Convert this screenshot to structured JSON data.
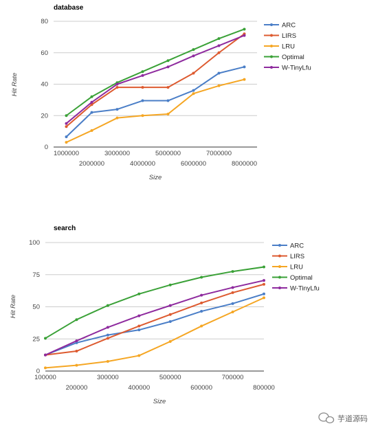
{
  "chart_data": [
    {
      "type": "line",
      "title": "database",
      "xlabel": "Size",
      "ylabel": "Hit Rate",
      "x": [
        1000000,
        2000000,
        3000000,
        4000000,
        5000000,
        6000000,
        7000000,
        8000000
      ],
      "xlim": [
        500000,
        8500000
      ],
      "ylim": [
        0,
        80
      ],
      "yticks": [
        0,
        20,
        40,
        60,
        80
      ],
      "xtick_labels": [
        "1000000",
        "2000000",
        "3000000",
        "4000000",
        "5000000",
        "6000000",
        "7000000",
        "8000000"
      ],
      "grid": true,
      "legend_position": "right",
      "series": [
        {
          "name": "ARC",
          "color": "#4a7ec7",
          "values": [
            6.5,
            22,
            24,
            29.5,
            29.5,
            36,
            47,
            51
          ]
        },
        {
          "name": "LIRS",
          "color": "#dd5a2f",
          "values": [
            13,
            27,
            38,
            38,
            38,
            47,
            60,
            72
          ]
        },
        {
          "name": "LRU",
          "color": "#f5a623",
          "values": [
            3,
            10.5,
            18.5,
            20,
            21,
            34,
            39,
            43
          ]
        },
        {
          "name": "Optimal",
          "color": "#3aa137",
          "values": [
            20,
            32,
            41,
            48,
            55,
            62,
            69,
            75
          ]
        },
        {
          "name": "W-TinyLfu",
          "color": "#8e2a9e",
          "values": [
            15,
            28.5,
            40,
            45.5,
            51,
            58,
            64.5,
            71
          ]
        }
      ]
    },
    {
      "type": "line",
      "title": "search",
      "xlabel": "Size",
      "ylabel": "Hit Rate",
      "x": [
        100000,
        200000,
        300000,
        400000,
        500000,
        600000,
        700000,
        800000
      ],
      "xlim": [
        100000,
        800000
      ],
      "ylim": [
        0,
        100
      ],
      "yticks": [
        0,
        25,
        50,
        75,
        100
      ],
      "xtick_labels": [
        "100000",
        "200000",
        "300000",
        "400000",
        "500000",
        "600000",
        "700000",
        "800000"
      ],
      "grid": true,
      "legend_position": "right",
      "series": [
        {
          "name": "ARC",
          "color": "#4a7ec7",
          "values": [
            12.5,
            22,
            28,
            32,
            38.5,
            46.5,
            52.5,
            60
          ]
        },
        {
          "name": "LIRS",
          "color": "#dd5a2f",
          "values": [
            12.5,
            15.5,
            25.5,
            35,
            44,
            53,
            61,
            67.5
          ]
        },
        {
          "name": "LRU",
          "color": "#f5a623",
          "values": [
            2.5,
            4.5,
            7.5,
            12,
            23,
            35,
            46,
            57
          ]
        },
        {
          "name": "Optimal",
          "color": "#3aa137",
          "values": [
            25.5,
            40,
            51,
            60,
            67,
            73,
            77.5,
            81
          ]
        },
        {
          "name": "W-TinyLfu",
          "color": "#8e2a9e",
          "values": [
            12.5,
            23.5,
            34,
            43,
            51,
            59,
            65,
            70.5
          ]
        }
      ]
    }
  ],
  "watermark": {
    "text": "芋道源码",
    "icon": "chat-bubble-icon"
  }
}
